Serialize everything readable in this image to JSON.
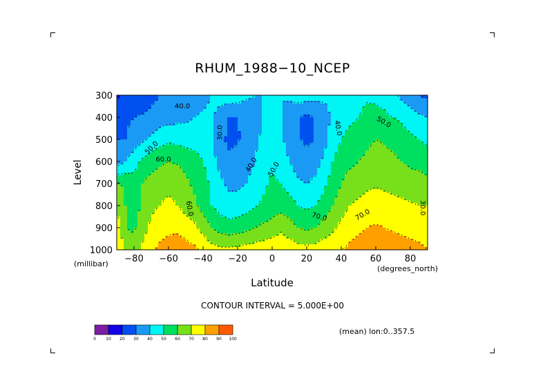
{
  "chart_data": {
    "type": "heatmap",
    "title": "RHUM_1988−10_NCEP",
    "xlabel": "Latitude",
    "ylabel": "Level",
    "x_unit": "(degrees_north)",
    "y_unit": "(millibar)",
    "xlim": [
      -90,
      90
    ],
    "ylim": [
      1000,
      300
    ],
    "x_ticks": [
      "−80",
      "−60",
      "−40",
      "−20",
      "0",
      "20",
      "40",
      "60",
      "80"
    ],
    "y_ticks": [
      "300",
      "400",
      "500",
      "600",
      "700",
      "800",
      "900",
      "1000"
    ],
    "contour_interval_text": "CONTOUR INTERVAL = 5.000E+00",
    "averaging_note": "(mean) lon:0..357.5",
    "colorbar": {
      "labels": [
        "0",
        "10",
        "20",
        "30",
        "40",
        "50",
        "60",
        "70",
        "80",
        "90",
        "100"
      ],
      "colors": [
        "#7a1fa0",
        "#1200e8",
        "#0050f0",
        "#1a9af5",
        "#00f5f5",
        "#00e060",
        "#78e01a",
        "#ffff00",
        "#ffa000",
        "#ff5a00",
        "#ff0000"
      ]
    },
    "contour_labels": [
      "40.0",
      "30.0",
      "40.0",
      "50.0",
      "40.0",
      "50.0",
      "50.0",
      "60.0",
      "70.0",
      "60.0",
      "70.0",
      "30.0"
    ],
    "latitudes": [
      -90,
      -85,
      -80,
      -75,
      -70,
      -65,
      -60,
      -55,
      -50,
      -45,
      -40,
      -35,
      -30,
      -25,
      -20,
      -15,
      -10,
      -5,
      0,
      5,
      10,
      15,
      20,
      25,
      30,
      35,
      40,
      45,
      50,
      55,
      60,
      65,
      70,
      75,
      80,
      85,
      90
    ],
    "levels": [
      {
        "p": 300,
        "rh": [
          18,
          22,
          24,
          25,
          27,
          30,
          32,
          33,
          34,
          36,
          38,
          40,
          44,
          46,
          45,
          42,
          40,
          40,
          40,
          40,
          42,
          45,
          45,
          44,
          42,
          41,
          44,
          46,
          48,
          49,
          48,
          46,
          42,
          38,
          34,
          30,
          28
        ]
      },
      {
        "p": 400,
        "rh": [
          26,
          28,
          30,
          31,
          33,
          35,
          36,
          37,
          38,
          40,
          41,
          42,
          36,
          30,
          30,
          32,
          36,
          40,
          42,
          40,
          35,
          30,
          28,
          30,
          36,
          42,
          46,
          48,
          50,
          52,
          53,
          52,
          50,
          48,
          45,
          42,
          40
        ]
      },
      {
        "p": 500,
        "rh": [
          30,
          30,
          34,
          38,
          42,
          46,
          48,
          47,
          46,
          45,
          44,
          40,
          32,
          28,
          29,
          33,
          38,
          42,
          45,
          42,
          36,
          31,
          28,
          30,
          36,
          44,
          50,
          53,
          55,
          58,
          60,
          59,
          57,
          55,
          52,
          50,
          48
        ]
      },
      {
        "p": 600,
        "rh": [
          34,
          40,
          46,
          52,
          56,
          58,
          60,
          59,
          57,
          55,
          50,
          44,
          36,
          32,
          33,
          36,
          40,
          45,
          48,
          45,
          40,
          35,
          33,
          36,
          42,
          50,
          56,
          58,
          60,
          62,
          64,
          63,
          62,
          60,
          58,
          57,
          55
        ]
      },
      {
        "p": 700,
        "rh": [
          62,
          58,
          54,
          60,
          64,
          66,
          68,
          66,
          62,
          58,
          54,
          48,
          42,
          38,
          38,
          40,
          44,
          48,
          52,
          50,
          46,
          42,
          40,
          42,
          48,
          54,
          60,
          64,
          66,
          68,
          69,
          68,
          67,
          66,
          65,
          64,
          63
        ]
      },
      {
        "p": 800,
        "rh": [
          68,
          60,
          55,
          62,
          68,
          70,
          72,
          70,
          66,
          62,
          56,
          50,
          46,
          44,
          44,
          46,
          49,
          52,
          55,
          56,
          54,
          50,
          48,
          50,
          54,
          60,
          66,
          70,
          72,
          74,
          75,
          74,
          73,
          72,
          71,
          70,
          70
        ]
      },
      {
        "p": 900,
        "rh": [
          76,
          60,
          58,
          66,
          72,
          76,
          78,
          78,
          76,
          72,
          66,
          60,
          56,
          54,
          55,
          57,
          60,
          62,
          64,
          68,
          64,
          60,
          58,
          60,
          64,
          68,
          72,
          76,
          78,
          80,
          81,
          80,
          79,
          78,
          77,
          76,
          75
        ]
      },
      {
        "p": 1000,
        "rh": [
          80,
          70,
          66,
          72,
          78,
          82,
          84,
          85,
          84,
          82,
          78,
          74,
          72,
          72,
          73,
          74,
          75,
          76,
          77,
          78,
          76,
          74,
          73,
          74,
          76,
          78,
          80,
          82,
          84,
          86,
          87,
          86,
          85,
          84,
          83,
          82,
          80
        ]
      }
    ]
  }
}
